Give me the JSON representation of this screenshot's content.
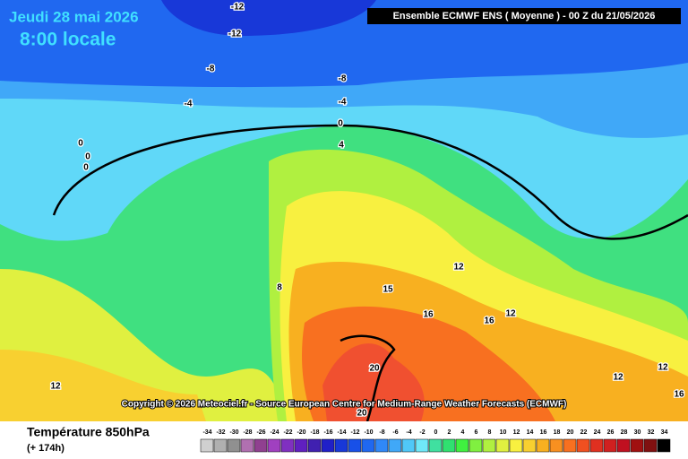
{
  "title": "Jeudi 28 mai 2026",
  "subtitle": "8:00 locale",
  "header": "Ensemble ECMWF ENS  ( Moyenne )  -  00 Z du 21/05/2026",
  "copyright": "Copyright © 2026 Meteociel.fr - Source European Centre for Medium-Range Weather Forecasts (ECMWF)",
  "variable": "Température 850hPa",
  "lead_time": "(+ 174h)",
  "contour_labels": [
    -12,
    -12,
    -8,
    -8,
    -4,
    -4,
    0,
    0,
    0,
    0,
    4,
    8,
    12,
    12,
    12,
    12,
    15,
    16,
    16,
    20,
    20,
    12,
    16
  ],
  "colorbar": {
    "values": [
      -34,
      -32,
      -30,
      -28,
      -26,
      -24,
      -22,
      -20,
      -18,
      -16,
      -14,
      -12,
      -10,
      -8,
      -6,
      -4,
      -2,
      0,
      2,
      4,
      6,
      8,
      10,
      12,
      14,
      16,
      18,
      20,
      22,
      24,
      26,
      28,
      30,
      32,
      34
    ],
    "colors": [
      "#d0d0d0",
      "#b0b0b0",
      "#909090",
      "#b070b0",
      "#904090",
      "#a040c0",
      "#8030c0",
      "#6020c0",
      "#4020b0",
      "#2020c8",
      "#1838d8",
      "#1850e8",
      "#2068f0",
      "#3088f8",
      "#40a8f8",
      "#50c8f8",
      "#70e8f8",
      "#40e0a0",
      "#30e070",
      "#40f040",
      "#80f040",
      "#b0f040",
      "#e0f040",
      "#f8f040",
      "#f8d030",
      "#f8b020",
      "#f89020",
      "#f87020",
      "#f05020",
      "#e03020",
      "#d02020",
      "#c01020",
      "#a01010",
      "#801010",
      "#000000"
    ]
  }
}
